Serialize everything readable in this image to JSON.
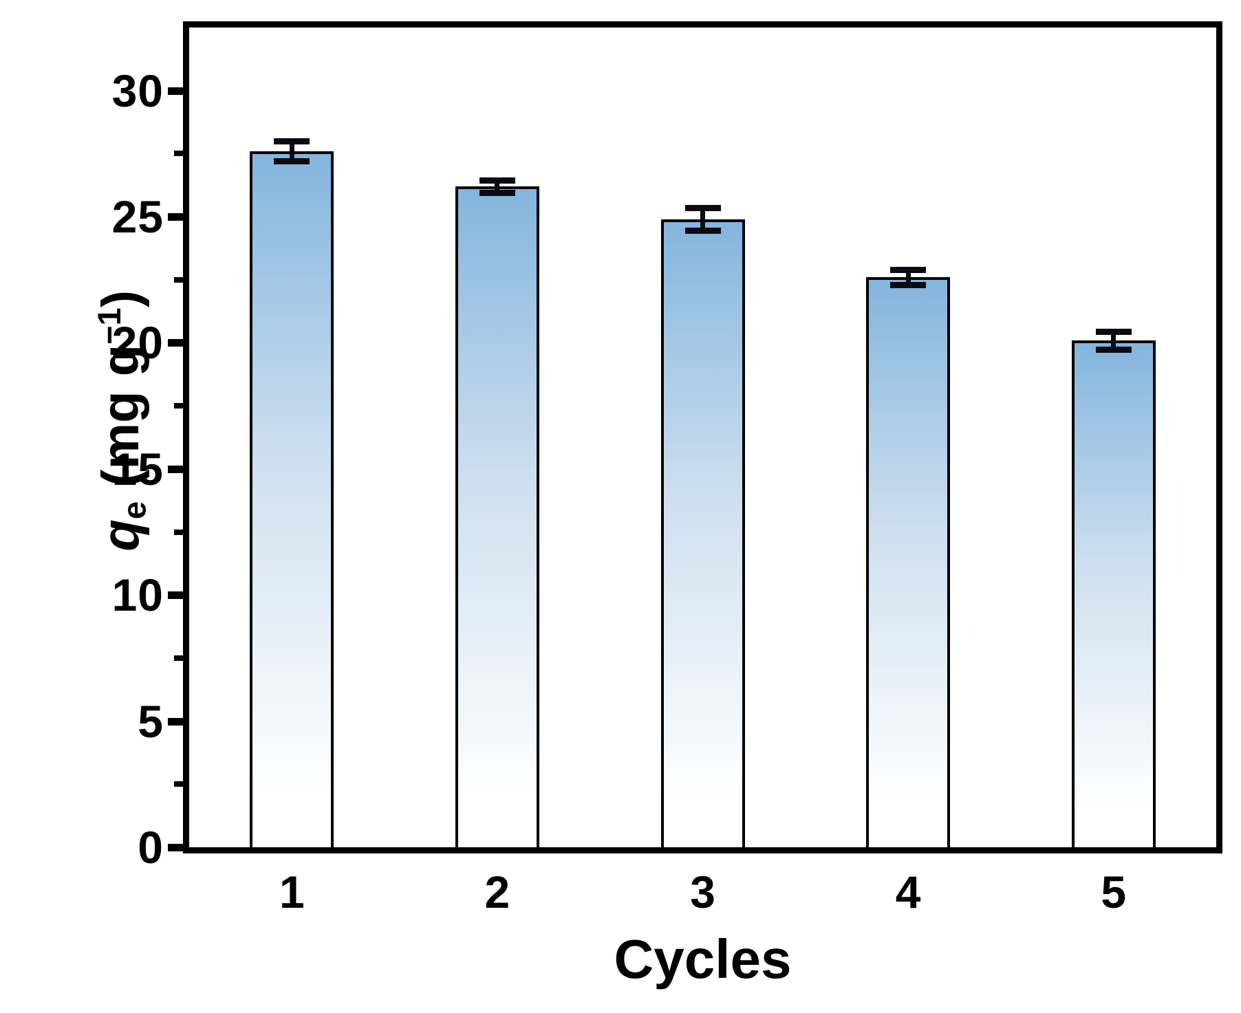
{
  "chart_data": {
    "type": "bar",
    "title": "",
    "xlabel": "Cycles",
    "ylabel": "qe (mg g−1)",
    "ylabel_parts": {
      "symbol": "q",
      "symbol_sub": "e",
      "units_open": " (mg g",
      "units_exp": "−1",
      "units_close": ")"
    },
    "categories": [
      "1",
      "2",
      "3",
      "4",
      "5"
    ],
    "values": [
      27.6,
      26.2,
      24.9,
      22.6,
      20.1
    ],
    "errors": [
      0.4,
      0.25,
      0.45,
      0.3,
      0.35
    ],
    "ylim": [
      0,
      32.5
    ],
    "ytick_values": [
      0,
      5,
      10,
      15,
      20,
      25,
      30
    ],
    "ytick_labels": [
      "0",
      "5",
      "10",
      "15",
      "20",
      "25",
      "30"
    ],
    "yticks_minor": [
      2.5,
      7.5,
      12.5,
      17.5,
      22.5,
      27.5
    ],
    "grid": false,
    "legend": "none",
    "colors": {
      "bar_gradient_top": "#84b5dd",
      "bar_gradient_mid": "#cfe0f0",
      "bar_gradient_bottom": "#ffffff",
      "bar_outline": "#000000",
      "axis_frame": "#000000",
      "error_bar": "#0a0a12",
      "background": "#ffffff"
    }
  }
}
